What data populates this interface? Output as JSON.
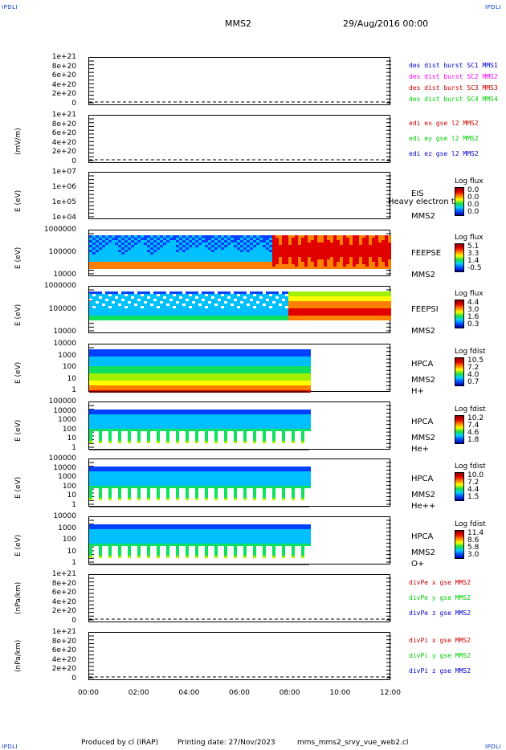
{
  "header": {
    "corner_tl": "IPDLI",
    "corner_tr": "IPDLI",
    "corner_bl": "IPDLI",
    "corner_br": "IPDLI",
    "title": "MMS2",
    "date": "29/Aug/2016 00:00"
  },
  "footer": {
    "produced": "Produced by cl (IRAP)",
    "printing": "Printing date: 27/Nov/2023",
    "file": "mms_mms2_srvy_vue_web2.cl"
  },
  "colors": {
    "c1": "#0000cc",
    "c2": "#ff00ff",
    "c3": "#cc0000",
    "c4": "#00cc00"
  },
  "chart_data": [
    {
      "type": "line",
      "ylabel": "",
      "yticks": [
        "1e+21",
        "8e+20",
        "6e+20",
        "4e+20",
        "2e+20",
        "0"
      ],
      "legend": [
        "des dist burst SC1 MMS1",
        "des dist burst SC2 MMS2",
        "des dist burst SC3 MMS3",
        "des dist burst SC4 MMS4"
      ],
      "series": [
        {
          "name": "des dist burst SC1 MMS1",
          "values": [
            0,
            0
          ]
        }
      ]
    },
    {
      "type": "line",
      "ylabel": "(mV/m)",
      "yticks": [
        "1e+21",
        "8e+20",
        "6e+20",
        "4e+20",
        "2e+20",
        "0"
      ],
      "legend": [
        "edi ex gse l2 MMS2",
        "edi ey gse l2 MMS2",
        "edi ez gse l2 MMS2"
      ]
    },
    {
      "type": "heatmap",
      "ylabel": "E (eV)",
      "yticks": [
        "1e+07",
        "1e+06",
        "1e+05",
        "1e+04"
      ],
      "labels": [
        "EIS",
        "Heavy electron to",
        "MMS2"
      ],
      "colorbar_title": "Log flux",
      "colorbar_values": [
        "0.0",
        "0.0",
        "0.0",
        "0.0"
      ]
    },
    {
      "type": "heatmap",
      "ylabel": "E (eV)",
      "yticks": [
        "1000000",
        "100000",
        "10000"
      ],
      "labels": [
        "FEEPSE",
        "MMS2"
      ],
      "colorbar_title": "Log flux",
      "colorbar_values": [
        "5.1",
        "3.3",
        "1.4",
        "-0.5"
      ]
    },
    {
      "type": "heatmap",
      "ylabel": "E (eV)",
      "yticks": [
        "1000000",
        "100000",
        "10000"
      ],
      "labels": [
        "FEEPSI",
        "MMS2"
      ],
      "colorbar_title": "Log flux",
      "colorbar_values": [
        "4.4",
        "3.0",
        "1.6",
        "0.3"
      ]
    },
    {
      "type": "heatmap",
      "ylabel": "E (eV)",
      "yticks": [
        "10000",
        "1000",
        "100",
        "10",
        "1"
      ],
      "labels": [
        "HPCA",
        "MMS2",
        "H+"
      ],
      "colorbar_title": "Log fdist",
      "colorbar_values": [
        "10.5",
        "7.2",
        "4.0",
        "0.7"
      ]
    },
    {
      "type": "heatmap",
      "ylabel": "E (eV)",
      "yticks": [
        "100000",
        "10000",
        "1000",
        "100",
        "10",
        "1"
      ],
      "labels": [
        "HPCA",
        "MMS2",
        "He+"
      ],
      "colorbar_title": "Log fdist",
      "colorbar_values": [
        "10.2",
        "7.4",
        "4.6",
        "1.8"
      ]
    },
    {
      "type": "heatmap",
      "ylabel": "E (eV)",
      "yticks": [
        "100000",
        "10000",
        "1000",
        "100",
        "10",
        "1"
      ],
      "labels": [
        "HPCA",
        "MMS2",
        "He++"
      ],
      "colorbar_title": "Log fdist",
      "colorbar_values": [
        "10.0",
        "7.2",
        "4.4",
        "1.5"
      ]
    },
    {
      "type": "heatmap",
      "ylabel": "E (eV)",
      "yticks": [
        "10000",
        "1000",
        "100",
        "10",
        "1"
      ],
      "labels": [
        "HPCA",
        "MMS2",
        "O+"
      ],
      "colorbar_title": "Log fdist",
      "colorbar_values": [
        "11.4",
        "8.6",
        "5.8",
        "3.0"
      ]
    },
    {
      "type": "line",
      "ylabel": "(nPa/km)",
      "yticks": [
        "1e+21",
        "8e+20",
        "6e+20",
        "4e+20",
        "2e+20",
        "0"
      ],
      "legend": [
        "divPe x gse MMS2",
        "divPe y gse MMS2",
        "divPe z gse MMS2"
      ]
    },
    {
      "type": "line",
      "ylabel": "(nPa/km)",
      "yticks": [
        "1e+21",
        "8e+20",
        "6e+20",
        "4e+20",
        "2e+20",
        "0"
      ],
      "legend": [
        "divPi x gse MMS2",
        "divPi y gse MMS2",
        "divPi z gse MMS2"
      ]
    }
  ],
  "xaxis": {
    "ticks": [
      "00:00",
      "02:00",
      "04:00",
      "06:00",
      "08:00",
      "10:00",
      "12:00"
    ]
  }
}
